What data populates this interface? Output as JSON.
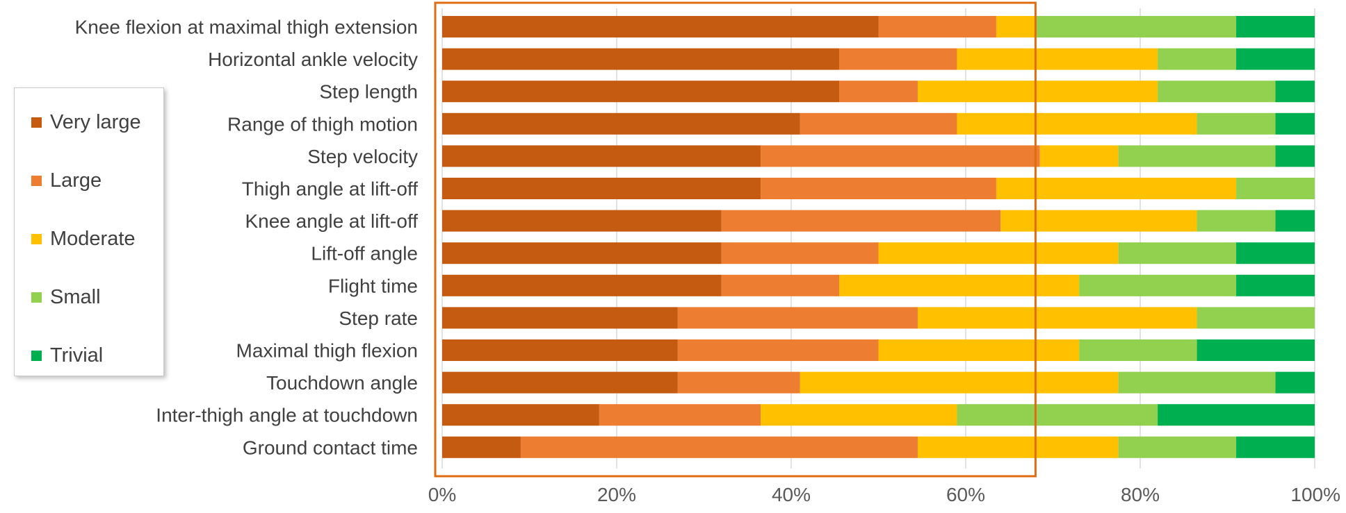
{
  "chart_data": {
    "type": "bar",
    "orientation": "horizontal",
    "stacked": "percent",
    "categories": [
      "Knee flexion at maximal thigh extension",
      "Horizontal ankle velocity",
      "Step length",
      "Range of thigh motion",
      "Step velocity",
      "Thigh angle at lift-off",
      "Knee angle at lift-off",
      "Lift-off angle",
      "Flight time",
      "Step rate",
      "Maximal thigh flexion",
      "Touchdown angle",
      "Inter-thigh angle at touchdown",
      "Ground contact time"
    ],
    "series": [
      {
        "name": "Very large",
        "color": "#c55a11",
        "values": [
          50,
          45.5,
          45.5,
          41,
          36.5,
          36.5,
          32,
          32,
          32,
          27,
          27,
          27,
          18,
          9
        ]
      },
      {
        "name": "Large",
        "color": "#ed7d31",
        "values": [
          13.5,
          13.5,
          9,
          18,
          32,
          27,
          32,
          18,
          13.5,
          27.5,
          23,
          14,
          18.5,
          45.5
        ]
      },
      {
        "name": "Moderate",
        "color": "#ffc000",
        "values": [
          4.5,
          23,
          27.5,
          27.5,
          9,
          27.5,
          22.5,
          27.5,
          27.5,
          32,
          23,
          36.5,
          22.5,
          23
        ]
      },
      {
        "name": "Small",
        "color": "#92d050",
        "values": [
          23,
          9,
          13.5,
          9,
          18,
          9,
          9,
          13.5,
          18,
          13.5,
          13.5,
          18,
          23,
          13.5
        ]
      },
      {
        "name": "Trivial",
        "color": "#00b050",
        "values": [
          9,
          9,
          4.5,
          4.5,
          4.5,
          0,
          4.5,
          9,
          9,
          0,
          13.5,
          4.5,
          18,
          9
        ]
      }
    ],
    "xticks": [
      "0%",
      "20%",
      "40%",
      "60%",
      "80%",
      "100%"
    ],
    "xlim": [
      0,
      100
    ],
    "grid": "vertical",
    "legend": "left",
    "highlight": {
      "type": "rectangle",
      "x_range": [
        0,
        68
      ],
      "color": "#e06c12"
    }
  }
}
